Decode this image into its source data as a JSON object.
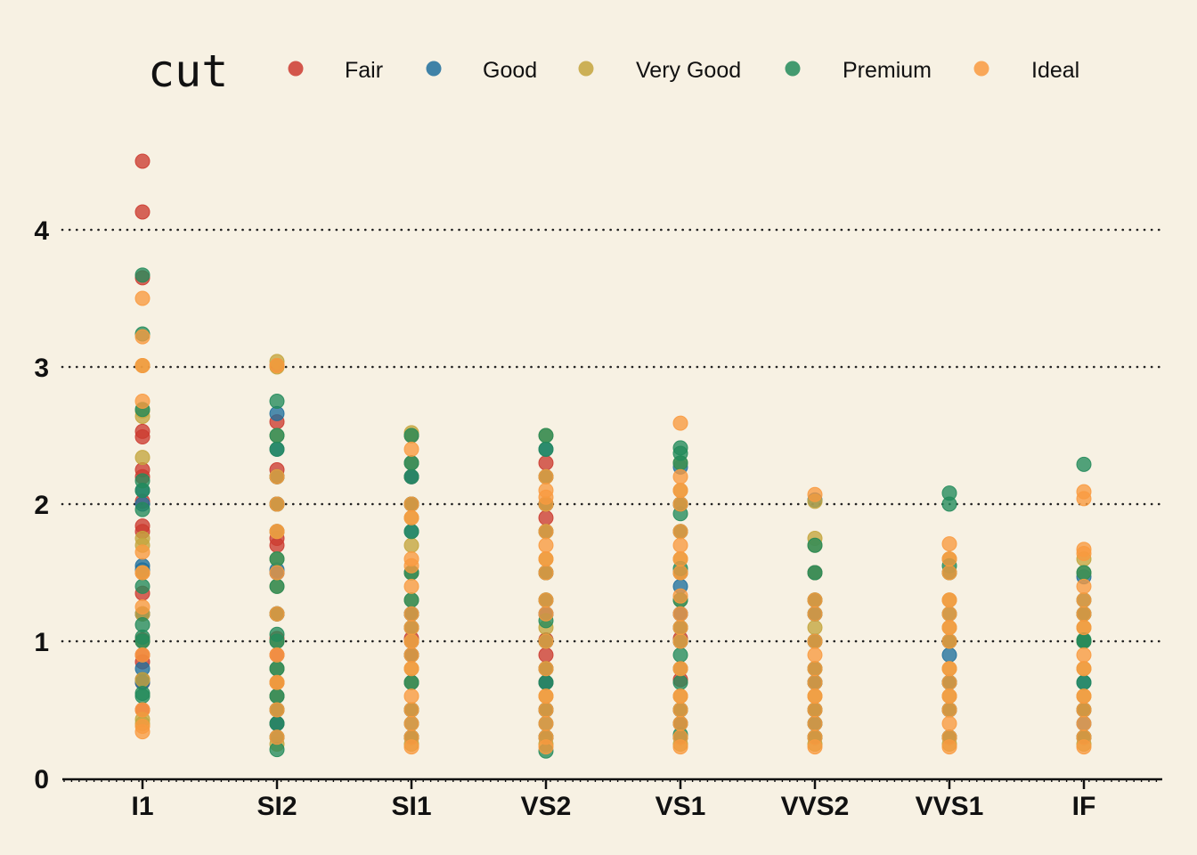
{
  "chart_data": {
    "type": "scatter",
    "title": "",
    "xlabel": "",
    "ylabel": "",
    "legend": {
      "title": "cut",
      "placement": "top"
    },
    "categories": [
      "I1",
      "SI2",
      "SI1",
      "VS2",
      "VS1",
      "VVS2",
      "VVS1",
      "IF"
    ],
    "y_axis": {
      "range": [
        0,
        4.6
      ],
      "ticks": [
        0,
        1,
        2,
        3,
        4
      ]
    },
    "grid": "horizontal dotted",
    "series": [
      {
        "name": "Fair",
        "color": "#cc3b30",
        "by_category": {
          "I1": [
            4.5,
            4.13,
            3.65,
            2.53,
            2.49,
            2.25,
            2.2,
            2.02,
            1.84,
            1.8,
            1.5,
            1.35,
            1.2,
            1.01,
            0.9,
            0.85,
            0.72,
            0.7,
            0.5
          ],
          "SI2": [
            3.01,
            2.6,
            2.25,
            2.0,
            1.75,
            1.7,
            1.5,
            1.2,
            1.02,
            0.9,
            0.7,
            0.5,
            0.4
          ],
          "SI1": [
            2.5,
            2.2,
            2.0,
            1.5,
            1.2,
            1.02,
            1.0,
            0.9,
            0.7,
            0.5,
            0.3
          ],
          "VS2": [
            2.3,
            2.0,
            1.9,
            1.5,
            1.2,
            1.01,
            0.9,
            0.8,
            0.7,
            0.5,
            0.3
          ],
          "VS1": [
            2.0,
            1.5,
            1.2,
            1.02,
            1.0,
            0.72,
            0.5,
            0.4
          ],
          "VVS2": [
            1.5,
            1.0,
            0.7,
            0.5,
            0.3
          ],
          "VVS1": [
            1.0,
            0.7,
            0.5,
            0.3
          ],
          "IF": [
            1.0,
            0.5,
            0.3
          ]
        }
      },
      {
        "name": "Good",
        "color": "#1f6f9c",
        "by_category": {
          "I1": [
            2.1,
            2.0,
            1.55,
            1.52,
            1.2,
            1.0,
            0.8,
            0.7
          ],
          "SI2": [
            2.66,
            2.4,
            2.2,
            2.0,
            1.8,
            1.52,
            1.5,
            1.2,
            1.0,
            0.8,
            0.6,
            0.4
          ],
          "SI1": [
            2.3,
            2.2,
            2.0,
            1.8,
            1.5,
            1.2,
            1.0,
            0.7,
            0.5,
            0.3
          ],
          "VS2": [
            2.4,
            2.0,
            1.5,
            1.2,
            1.0,
            0.7,
            0.5,
            0.3
          ],
          "VS1": [
            2.27,
            2.0,
            1.5,
            1.4,
            1.2,
            1.0,
            0.8,
            0.5,
            0.3
          ],
          "VVS2": [
            2.03,
            1.5,
            1.2,
            1.0,
            0.7,
            0.4
          ],
          "VVS1": [
            0.9,
            0.7,
            0.5,
            0.3
          ],
          "IF": [
            1.47,
            1.2,
            1.0,
            0.7,
            0.4
          ]
        }
      },
      {
        "name": "Very Good",
        "color": "#c4a53d",
        "by_category": {
          "I1": [
            3.01,
            2.68,
            2.64,
            2.34,
            1.75,
            1.7,
            1.5,
            1.2,
            1.0,
            0.72,
            0.43,
            0.4
          ],
          "SI2": [
            3.04,
            3.0,
            2.5,
            2.2,
            2.0,
            1.8,
            1.6,
            1.4,
            1.2,
            1.0,
            0.8,
            0.7,
            0.6,
            0.5,
            0.3,
            0.25
          ],
          "SI1": [
            2.52,
            2.5,
            2.3,
            2.0,
            1.9,
            1.7,
            1.5,
            1.3,
            1.1,
            1.0,
            0.8,
            0.7,
            0.5,
            0.3,
            0.25
          ],
          "VS2": [
            2.5,
            2.2,
            2.0,
            1.8,
            1.6,
            1.5,
            1.3,
            1.1,
            1.0,
            0.8,
            0.6,
            0.5,
            0.3,
            0.25
          ],
          "VS1": [
            2.3,
            2.1,
            2.0,
            1.8,
            1.6,
            1.5,
            1.3,
            1.1,
            1.0,
            0.8,
            0.6,
            0.5,
            0.3,
            0.25
          ],
          "VVS2": [
            2.02,
            1.75,
            1.7,
            1.5,
            1.3,
            1.1,
            1.0,
            0.8,
            0.6,
            0.5,
            0.3,
            0.25
          ],
          "VVS1": [
            1.6,
            1.5,
            1.3,
            1.1,
            1.0,
            0.8,
            0.6,
            0.5,
            0.3,
            0.25
          ],
          "IF": [
            1.6,
            1.5,
            1.2,
            1.1,
            1.0,
            0.8,
            0.6,
            0.5,
            0.3,
            0.25
          ]
        }
      },
      {
        "name": "Premium",
        "color": "#238b5b",
        "by_category": {
          "I1": [
            3.67,
            3.24,
            2.69,
            2.17,
            2.1,
            1.96,
            1.4,
            1.12,
            1.03,
            1.0,
            0.62,
            0.6
          ],
          "SI2": [
            2.75,
            2.5,
            2.4,
            2.2,
            2.0,
            1.6,
            1.4,
            1.2,
            1.05,
            1.0,
            0.8,
            0.6,
            0.5,
            0.4,
            0.3,
            0.21
          ],
          "SI1": [
            2.5,
            2.3,
            2.2,
            2.0,
            1.8,
            1.5,
            1.3,
            1.2,
            1.1,
            0.9,
            0.7,
            0.5,
            0.4,
            0.3
          ],
          "VS2": [
            2.5,
            2.4,
            2.2,
            2.0,
            1.8,
            1.5,
            1.3,
            1.15,
            1.0,
            0.8,
            0.7,
            0.5,
            0.4,
            0.3,
            0.2
          ],
          "VS1": [
            2.41,
            2.37,
            2.3,
            2.0,
            1.93,
            1.8,
            1.53,
            1.3,
            1.1,
            1.0,
            0.9,
            0.7,
            0.5,
            0.4,
            0.32,
            0.3
          ],
          "VVS2": [
            1.7,
            1.5,
            1.3,
            1.2,
            1.0,
            0.8,
            0.7,
            0.5,
            0.4,
            0.3
          ],
          "VVS1": [
            2.08,
            2.0,
            1.55,
            1.5,
            1.2,
            1.0,
            0.7,
            0.5,
            0.3
          ],
          "IF": [
            2.29,
            1.5,
            1.3,
            1.2,
            1.01,
            1.0,
            0.7,
            0.5,
            0.3
          ]
        }
      },
      {
        "name": "Ideal",
        "color": "#f99a3f",
        "by_category": {
          "I1": [
            3.5,
            3.22,
            3.01,
            2.75,
            1.65,
            1.5,
            1.25,
            0.9,
            0.5,
            0.38,
            0.34
          ],
          "SI2": [
            3.01,
            2.2,
            2.0,
            1.8,
            1.5,
            1.2,
            0.9,
            0.7,
            0.5,
            0.3
          ],
          "SI1": [
            2.4,
            2.0,
            1.9,
            1.6,
            1.55,
            1.4,
            1.2,
            1.1,
            1.0,
            0.9,
            0.8,
            0.6,
            0.5,
            0.4,
            0.3,
            0.23
          ],
          "VS2": [
            2.2,
            2.1,
            2.05,
            2.0,
            1.8,
            1.7,
            1.6,
            1.5,
            1.3,
            1.2,
            1.0,
            0.8,
            0.6,
            0.5,
            0.4,
            0.3,
            0.23
          ],
          "VS1": [
            2.59,
            2.2,
            2.1,
            2.0,
            1.8,
            1.7,
            1.6,
            1.5,
            1.33,
            1.2,
            1.1,
            1.0,
            0.8,
            0.6,
            0.5,
            0.4,
            0.3,
            0.23
          ],
          "VVS2": [
            2.07,
            1.3,
            1.2,
            1.0,
            0.9,
            0.8,
            0.7,
            0.6,
            0.5,
            0.4,
            0.3,
            0.23
          ],
          "VVS1": [
            1.71,
            1.6,
            1.5,
            1.3,
            1.2,
            1.1,
            1.0,
            0.8,
            0.7,
            0.6,
            0.5,
            0.4,
            0.3,
            0.23
          ],
          "IF": [
            2.09,
            2.04,
            1.67,
            1.64,
            1.4,
            1.3,
            1.2,
            1.1,
            0.9,
            0.8,
            0.6,
            0.5,
            0.4,
            0.3,
            0.23
          ]
        }
      }
    ]
  }
}
